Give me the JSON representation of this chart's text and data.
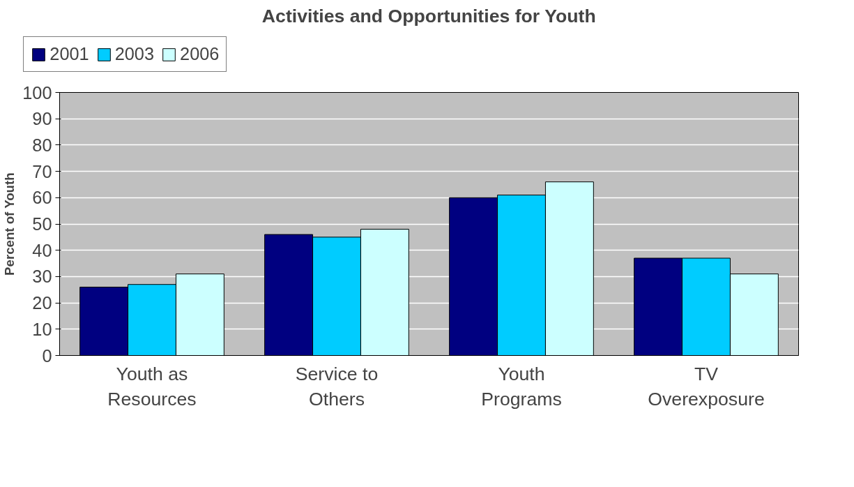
{
  "chart_data": {
    "type": "bar",
    "title": "Activities and Opportunities for Youth",
    "ylabel": "Percent of Youth",
    "categories": [
      "Youth as Resources",
      "Service to Others",
      "Youth Programs",
      "TV Overexposure"
    ],
    "series": [
      {
        "name": "2001",
        "color": "#000080",
        "values": [
          26,
          46,
          60,
          37
        ]
      },
      {
        "name": "2003",
        "color": "#00ccff",
        "values": [
          27,
          45,
          61,
          37
        ]
      },
      {
        "name": "2006",
        "color": "#ccffff",
        "values": [
          31,
          48,
          66,
          31
        ]
      }
    ],
    "ylim": [
      0,
      100
    ],
    "yticks": [
      0,
      10,
      20,
      30,
      40,
      50,
      60,
      70,
      80,
      90,
      100
    ],
    "grid": "y",
    "legend": "top left"
  }
}
